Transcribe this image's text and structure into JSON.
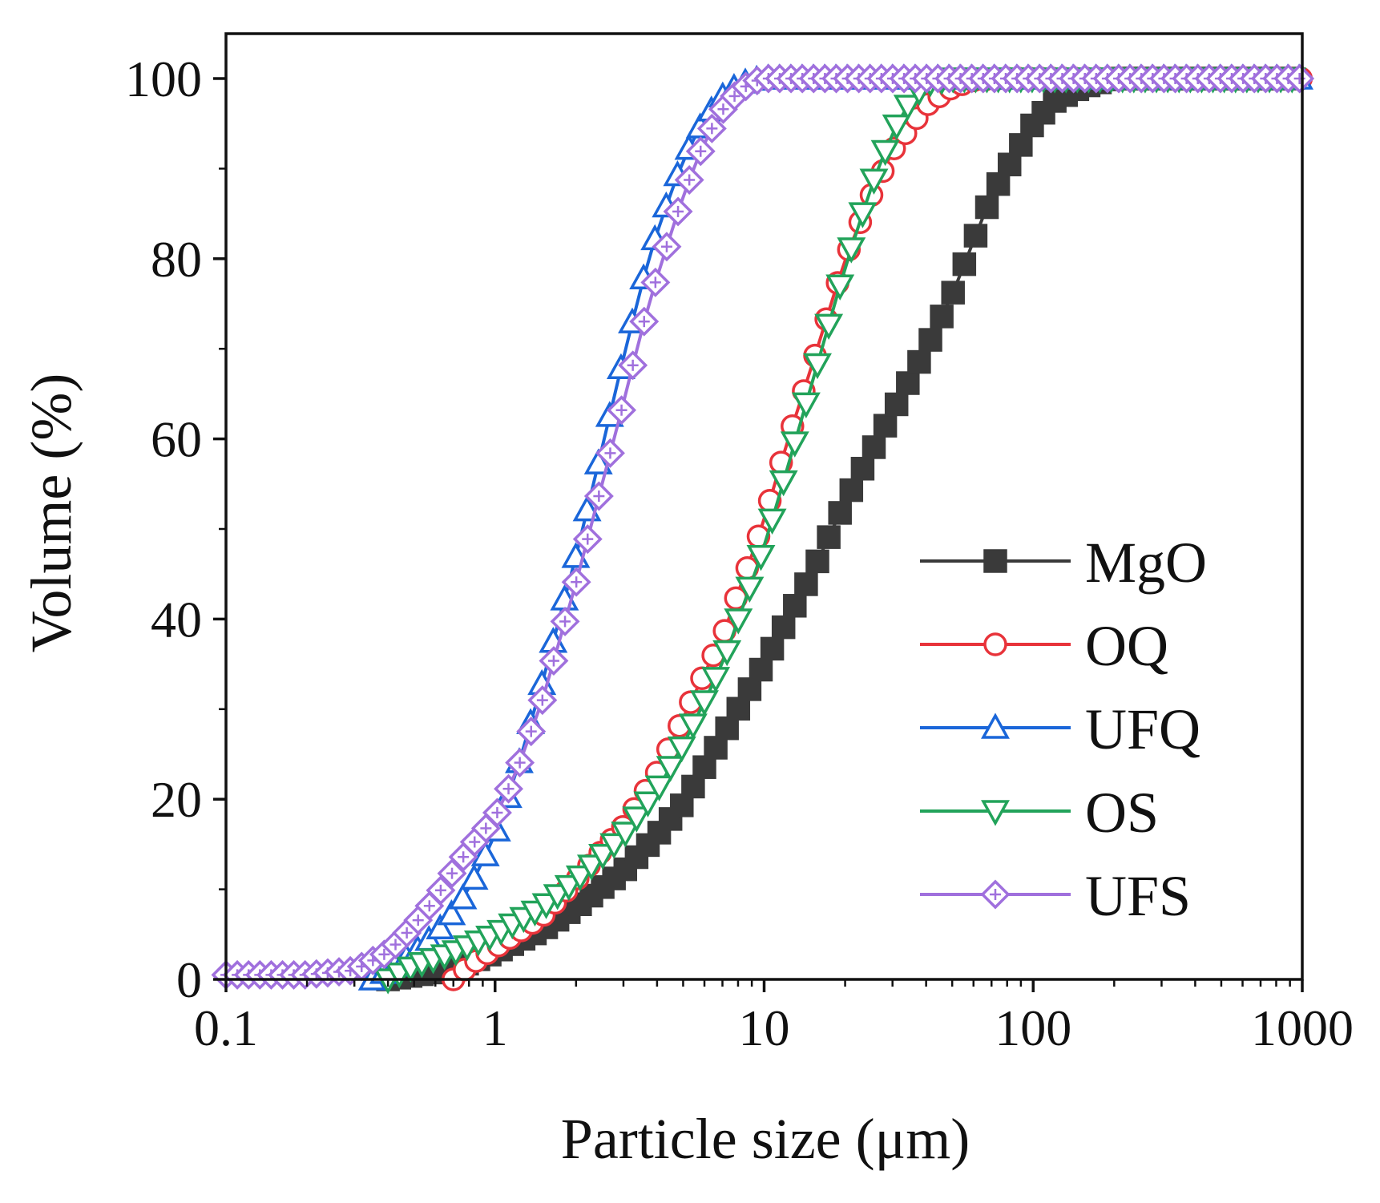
{
  "chart_data": {
    "type": "line",
    "title": "",
    "xlabel": "Particle size (μm)",
    "ylabel": "Volume (%)",
    "xscale": "log",
    "xlim": [
      0.1,
      1000
    ],
    "ylim": [
      0,
      100
    ],
    "x_ticks": [
      "0.1",
      "1",
      "10",
      "100",
      "1000"
    ],
    "y_ticks": [
      "0",
      "20",
      "40",
      "60",
      "80",
      "100"
    ],
    "legend_position": "lower-right",
    "grid": false,
    "series": [
      {
        "name": "MgO",
        "color": "#3a3a3a",
        "marker": "square",
        "x": [
          0.4,
          0.6,
          0.8,
          1,
          1.5,
          2,
          3,
          4,
          5,
          7,
          10,
          15,
          20,
          30,
          40,
          50,
          70,
          100,
          120,
          150,
          200,
          300,
          500,
          1000
        ],
        "y": [
          0,
          0.8,
          1.8,
          3,
          5.5,
          8,
          12,
          16,
          19.5,
          27,
          35,
          45,
          53,
          63,
          70,
          76,
          87,
          95,
          97.5,
          99,
          100,
          100,
          100,
          100
        ]
      },
      {
        "name": "OQ",
        "color": "#e8333a",
        "marker": "circle",
        "x": [
          0.7,
          0.8,
          1,
          1.5,
          2,
          3,
          4,
          5,
          6,
          7,
          8,
          9,
          10,
          12,
          15,
          20,
          25,
          30,
          40,
          50,
          60,
          80,
          100,
          200,
          1000
        ],
        "y": [
          0,
          1.5,
          3.5,
          7,
          11,
          17,
          23,
          29,
          34,
          38,
          43,
          47,
          51,
          59,
          68,
          80,
          87,
          92,
          97,
          99,
          99.8,
          100,
          100,
          100,
          100
        ]
      },
      {
        "name": "UFQ",
        "color": "#1a66d9",
        "marker": "triangle-up",
        "x": [
          0.35,
          0.4,
          0.5,
          0.6,
          0.7,
          0.8,
          1,
          1.2,
          1.5,
          2,
          2.5,
          3,
          3.5,
          4,
          5,
          6,
          7,
          8,
          9,
          10,
          15,
          100,
          1000
        ],
        "y": [
          0,
          1,
          3,
          5,
          7.5,
          10,
          16,
          23,
          33,
          47,
          59,
          69,
          77,
          83,
          91,
          95.5,
          98,
          99.3,
          99.8,
          100,
          100,
          100,
          100
        ]
      },
      {
        "name": "OS",
        "color": "#22a35a",
        "marker": "triangle-down",
        "x": [
          0.4,
          0.5,
          0.7,
          1,
          1.5,
          2,
          3,
          4,
          5,
          7,
          10,
          12,
          15,
          20,
          25,
          30,
          35,
          40,
          50,
          100,
          1000
        ],
        "y": [
          0,
          1.5,
          3,
          5,
          8,
          11,
          16,
          21,
          26,
          35,
          48,
          56,
          66,
          79,
          88,
          94,
          97.5,
          99.5,
          100,
          100,
          100
        ]
      },
      {
        "name": "UFS",
        "color": "#a070dd",
        "marker": "diamond",
        "x": [
          0.1,
          0.2,
          0.3,
          0.4,
          0.5,
          0.6,
          0.7,
          0.8,
          1,
          1.2,
          1.5,
          2,
          2.5,
          3,
          3.5,
          4,
          5,
          6,
          7,
          8,
          9,
          10,
          15,
          100,
          1000
        ],
        "y": [
          0.5,
          0.5,
          1,
          3,
          6,
          9,
          12,
          14.5,
          18,
          23,
          31,
          44,
          55,
          64,
          72,
          78,
          87,
          93,
          96.5,
          98.5,
          99.6,
          100,
          100,
          100,
          100
        ]
      }
    ]
  }
}
